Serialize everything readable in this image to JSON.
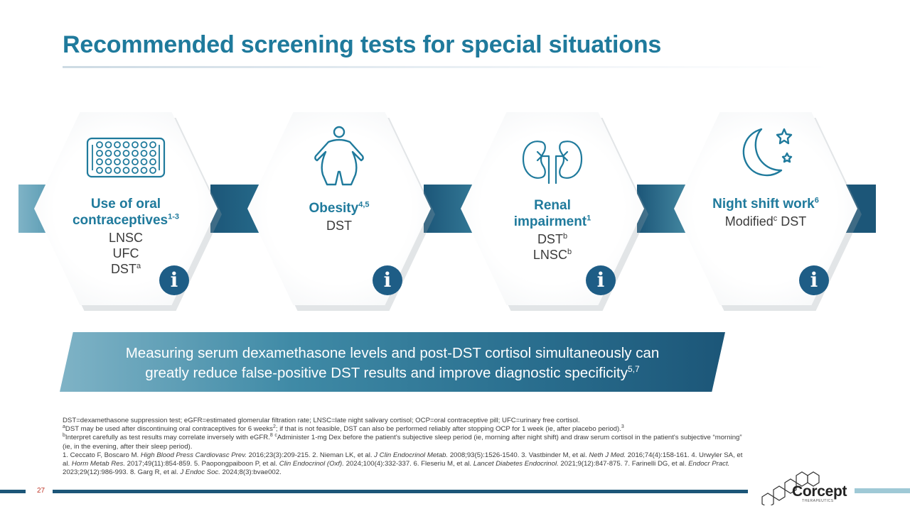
{
  "slide": {
    "title": "Recommended screening tests for special situations",
    "page_number": "27"
  },
  "situations": [
    {
      "icon": "oral-contraceptive-pack-icon",
      "heading_line1": "Use of oral",
      "heading_line2": "contraceptives",
      "heading_sup": "1-3",
      "tests": [
        {
          "text": "LNSC",
          "sup": ""
        },
        {
          "text": "UFC",
          "sup": ""
        },
        {
          "text": "DST",
          "sup": "a"
        }
      ]
    },
    {
      "icon": "obesity-person-icon",
      "heading_line1": "Obesity",
      "heading_sup": "4,5",
      "tests": [
        {
          "text": "DST",
          "sup": ""
        }
      ]
    },
    {
      "icon": "kidneys-icon",
      "heading_line1": "Renal",
      "heading_line2": "impairment",
      "heading_sup": "1",
      "tests": [
        {
          "text": "DST",
          "sup": "b"
        },
        {
          "text": "LNSC",
          "sup": "b"
        }
      ]
    },
    {
      "icon": "moon-stars-icon",
      "heading_line1": "Night shift work",
      "heading_sup": "6",
      "tests": [
        {
          "text": "Modified",
          "sup": "c",
          "suffix": " DST"
        }
      ]
    }
  ],
  "info_button_glyph": "i",
  "callout": {
    "line1": "Measuring serum dexamethasone levels and post-DST cortisol simultaneously can",
    "line2": "greatly reduce false-positive DST results and improve diagnostic specificity",
    "sup": "5,7"
  },
  "footnotes": {
    "abbreviations": "DST=dexamethasone suppression test; eGFR=estimated glomerular filtration rate; LNSC=late night salivary cortisol; OCP=oral contraceptive pill; UFC=urinary free cortisol.",
    "note_a": "DST may be used after discontinuing oral contraceptives for 6 weeks",
    "note_a_cont": "; if that is not feasible, DST can also be performed reliably after stopping OCP for 1 week (ie, after placebo period).",
    "note_b": "Interpret carefully as test results may correlate inversely with eGFR.",
    "note_c": "Administer 1-mg Dex before the patient's subjective sleep period (ie, morning after night shift) and draw serum cortisol in the patient's subjective “morning” (ie, in the evening, after their sleep period).",
    "ref_1": "1. Ceccato F, Boscaro M. ",
    "ref_1_j": "High Blood Press Cardiovasc Prev.",
    "ref_1_rest": " 2016;23(3):209-215. 2. Nieman LK, et al. ",
    "ref_2_j": "J Clin Endocrinol Metab.",
    "ref_2_rest": " 2008;93(5):1526-1540. 3. Vastbinder M, et al. ",
    "ref_3_j": "Neth J Med.",
    "ref_3_rest": " 2016;74(4):158-161. 4. Urwyler SA, et al. ",
    "ref_4_j": "Horm Metab Res.",
    "ref_4_rest": " 2017;49(11):854-859. 5. Paopongpaiboon P, et al. ",
    "ref_5_j": "Clin Endocrinol (Oxf).",
    "ref_5_rest": " 2024;100(4):332-337. 6. Fleseriu M, et al. ",
    "ref_6_j": "Lancet Diabetes Endocrinol.",
    "ref_6_rest": " 2021;9(12):847-875. 7. Farinelli DG, et al. ",
    "ref_7_j": "Endocr Pract.",
    "ref_7_rest": " 2023;29(12):986-993. 8. Garg R, et al. ",
    "ref_8_j": "J Endoc Soc.",
    "ref_8_rest": " 2024;8(3):bvae002."
  },
  "logo": {
    "name": "Corcept",
    "tagline": "THERAPEUTICS"
  },
  "colors": {
    "title": "#1f7a9c",
    "band_dark": "#1c5678",
    "band_light": "#5aa3b8",
    "info_button": "#1e5d86"
  }
}
